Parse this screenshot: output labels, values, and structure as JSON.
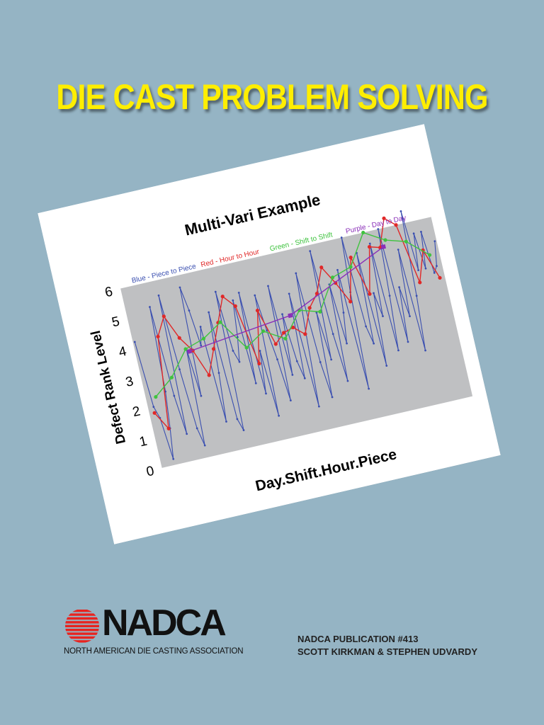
{
  "cover": {
    "title": "DIE CAST PROBLEM SOLVING",
    "title_color": "#ffee00",
    "background_color": "#95b4c4"
  },
  "chart_data": {
    "type": "line",
    "title": "Multi-Vari Example",
    "xlabel": "Day.Shift.Hour.Piece",
    "ylabel": "Defect Rank Level",
    "ylim": [
      0,
      6
    ],
    "y_ticks": [
      "0",
      "1",
      "2",
      "3",
      "4",
      "5",
      "6"
    ],
    "legend": [
      {
        "label": "Blue - Piece to Piece",
        "color": "#3a4fb0"
      },
      {
        "label": "Red - Hour to Hour",
        "color": "#e02828"
      },
      {
        "label": "Green - Shift to Shift",
        "color": "#3fc33f"
      },
      {
        "label": "Purple - Day to Day",
        "color": "#8a2fb8"
      }
    ],
    "legend_placement": "top",
    "grid": false,
    "series": [
      {
        "name": "Blue - Piece to Piece",
        "color": "#3a4fb0",
        "values": [
          4.2,
          2.0,
          1.6,
          0.2,
          1.2,
          2.4,
          5.2,
          2.2,
          0.9,
          5.5,
          3.0,
          1.0,
          0.4,
          3.6,
          2.0,
          5.6,
          4.8,
          3.6,
          4.2,
          1.0,
          2.6,
          4.6,
          1.0,
          0.6,
          5.2,
          3.2,
          2.8,
          3.6,
          4.8,
          2.0,
          5.0,
          1.6,
          3.0,
          0.8,
          4.8,
          3.6,
          2.6,
          1.2,
          5.0,
          2.0,
          4.0,
          2.4,
          1.8,
          4.6,
          0.8,
          3.2,
          5.2,
          2.2,
          1.0,
          3.8,
          2.2,
          5.8,
          3.0,
          1.4,
          4.6,
          2.6,
          3.6,
          5.0,
          1.0,
          4.2,
          6.0,
          3.0,
          2.4,
          5.4,
          1.6,
          4.0,
          3.2,
          5.6,
          2.0,
          3.8,
          6.0,
          2.2,
          4.0,
          3.0,
          5.2,
          1.8,
          3.6,
          6.4,
          4.4,
          5.6,
          4.4,
          5.6,
          4.2,
          4.4,
          5.2
        ]
      },
      {
        "name": "Red - Hour to Hour",
        "color": "#e02828",
        "values": [
          1.8,
          1.2,
          4.2,
          4.8,
          4.0,
          3.5,
          2.6,
          3.4,
          4.2,
          5.0,
          4.6,
          2.6,
          4.3,
          3.1,
          3.4,
          3.5,
          3.2,
          4.0,
          4.4,
          5.2,
          4.6,
          3.9,
          5.3,
          4.0,
          5.5,
          5.4,
          6.3,
          6.0,
          4.0,
          5.0,
          4.0
        ]
      },
      {
        "name": "Green - Shift to Shift",
        "color": "#3fc33f",
        "values": [
          2.3,
          2.8,
          3.6,
          3.8,
          4.2,
          3.2,
          3.6,
          3.2,
          4.0,
          3.8,
          4.8,
          5.0,
          6.0,
          5.6,
          5.4,
          4.8
        ]
      },
      {
        "name": "Purple - Day to Day",
        "color": "#8a2fb8",
        "values": [
          3.5,
          3.9,
          5.4
        ]
      }
    ]
  },
  "logo": {
    "wordmark": "NADCA",
    "tagline": "NORTH AMERICAN DIE CASTING ASSOCIATION",
    "mark_color": "#e8231f"
  },
  "publication": {
    "number": "NADCA PUBLICATION #413",
    "authors": "SCOTT KIRKMAN & STEPHEN UDVARDY"
  }
}
